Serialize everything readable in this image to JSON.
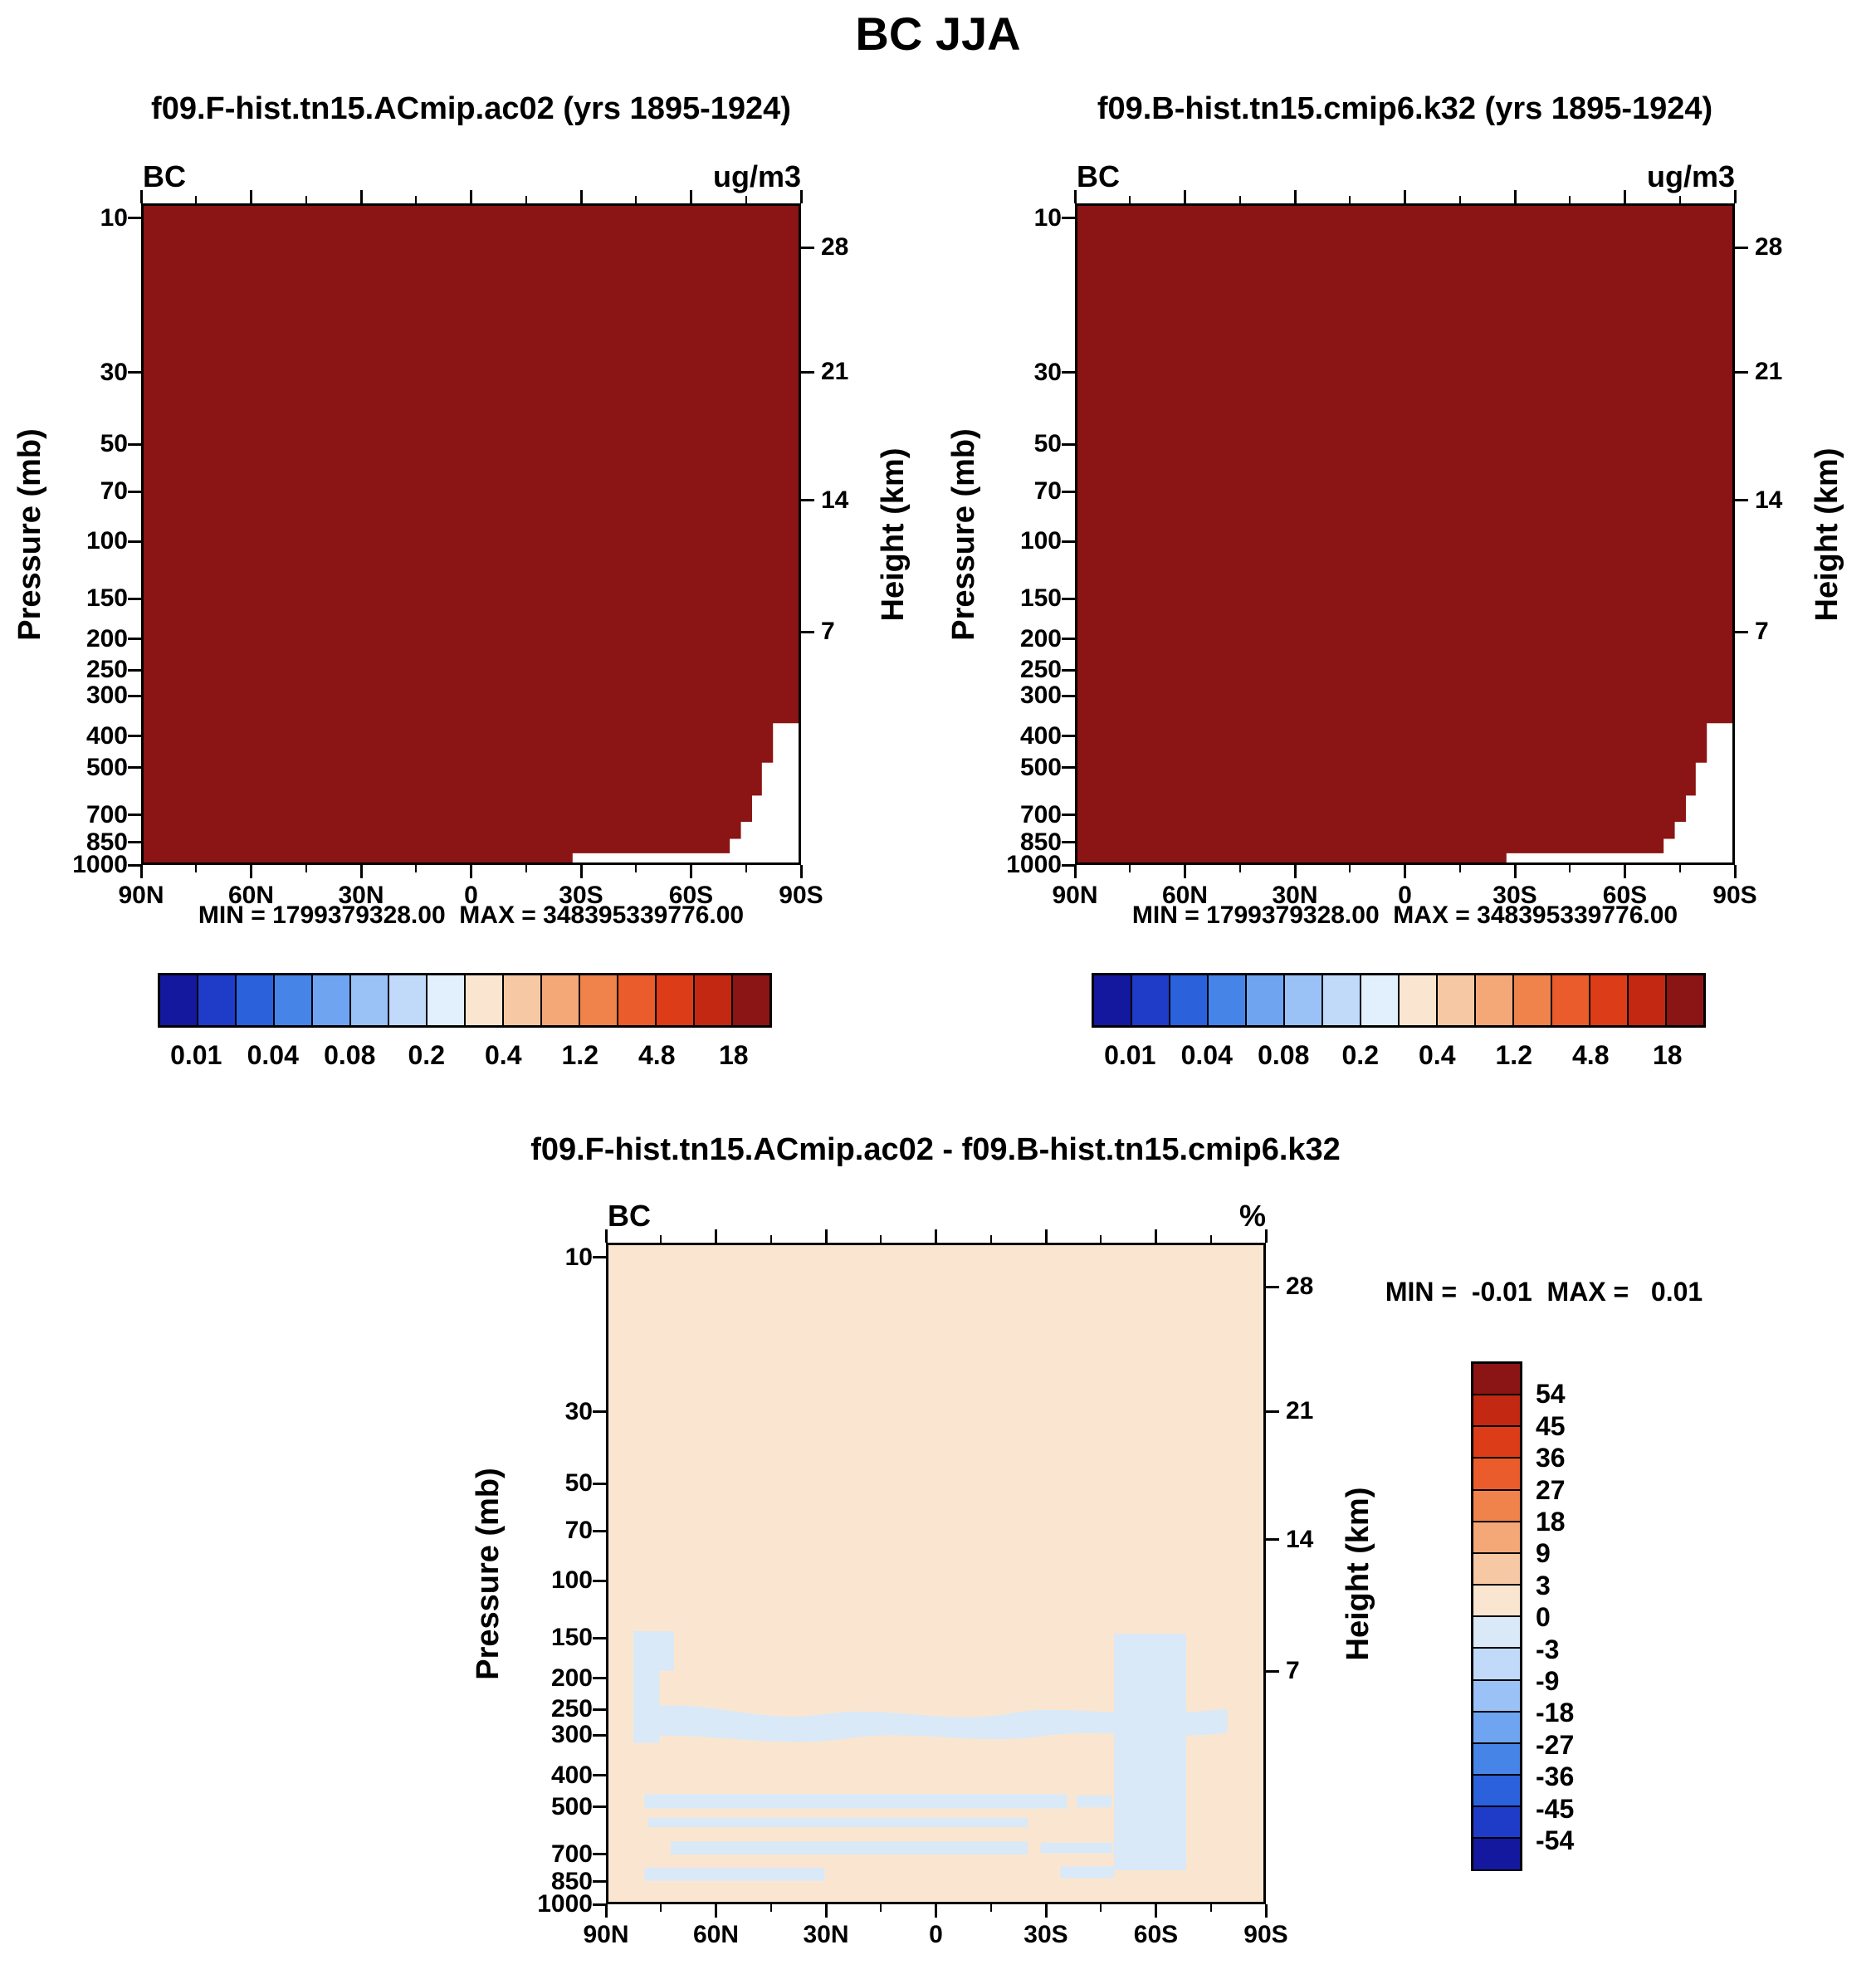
{
  "title": "BC JJA",
  "panels": {
    "top_left": {
      "title": "f09.F-hist.tn15.ACmip.ac02 (yrs 1895-1924)",
      "field_label": "BC",
      "units_label": "ug/m3",
      "stats": "MIN = 1799379328.00  MAX = 348395339776.00"
    },
    "top_right": {
      "title": "f09.B-hist.tn15.cmip6.k32 (yrs 1895-1924)",
      "field_label": "BC",
      "units_label": "ug/m3",
      "stats": "MIN = 1799379328.00  MAX = 348395339776.00"
    },
    "bottom": {
      "title": "f09.F-hist.tn15.ACmip.ac02 - f09.B-hist.tn15.cmip6.k32",
      "field_label": "BC",
      "units_label": "%",
      "stats": "MIN =  -0.01  MAX =   0.01"
    }
  },
  "axes": {
    "pressure_label": "Pressure (mb)",
    "height_label": "Height (km)",
    "pressure_ticks": [
      10,
      30,
      50,
      70,
      100,
      150,
      200,
      250,
      300,
      400,
      500,
      700,
      850,
      1000
    ],
    "height_ticks": [
      28,
      21,
      14,
      7
    ],
    "lat_ticks": [
      "90N",
      "60N",
      "30N",
      "0",
      "30S",
      "60S",
      "90S"
    ]
  },
  "colorbar_top": {
    "labels": [
      "0.01",
      "0.04",
      "0.08",
      "0.2",
      "0.4",
      "1.2",
      "4.8",
      "18"
    ],
    "colors": [
      "#14189E",
      "#1F3CC8",
      "#2B62DC",
      "#4684E8",
      "#6FA4F0",
      "#9AC2F6",
      "#C2DAFA",
      "#E2EFFC",
      "#FAE6D0",
      "#F7C8A4",
      "#F4A878",
      "#F0824C",
      "#EA5C2C",
      "#DC3C18",
      "#C22812",
      "#8B1414"
    ]
  },
  "colorbar_diff": {
    "labels": [
      "54",
      "45",
      "36",
      "27",
      "18",
      "9",
      "3",
      "0",
      "-3",
      "-9",
      "-18",
      "-27",
      "-36",
      "-45",
      "-54"
    ],
    "colors": [
      "#8B1414",
      "#C22812",
      "#DC3C18",
      "#EA5C2C",
      "#F0824C",
      "#F4A878",
      "#F7C8A4",
      "#FAE6D0",
      "#D9E9F8",
      "#C2DAFA",
      "#9AC2F6",
      "#6FA4F0",
      "#4684E8",
      "#2B62DC",
      "#1F3CC8",
      "#14189E"
    ]
  },
  "colors": {
    "saturated_field": "#8B1414",
    "missing_white": "#FFFFFF",
    "diff_background": "#FAE6D0",
    "diff_negative_band": "#D9E9F8"
  },
  "chart_data": [
    {
      "type": "heatmap",
      "title": "f09.F-hist.tn15.ACmip.ac02 (yrs 1895-1924)",
      "variable": "BC",
      "units": "ug/m3",
      "season": "JJA",
      "x_ticks": [
        "90N",
        "60N",
        "30N",
        "0",
        "30S",
        "60S",
        "90S"
      ],
      "y_axis": {
        "label": "Pressure (mb)",
        "scale": "log",
        "ticks": [
          10,
          30,
          50,
          70,
          100,
          150,
          200,
          250,
          300,
          400,
          500,
          700,
          850,
          1000
        ]
      },
      "secondary_y_axis": {
        "label": "Height (km)",
        "ticks": [
          28,
          21,
          14,
          7
        ]
      },
      "colorbar_labels": [
        0.01,
        0.04,
        0.08,
        0.2,
        0.4,
        1.2,
        4.8,
        18
      ],
      "min": 1799379328.0,
      "max": 348395339776.0,
      "field_description": "Entire latitude-pressure cross-section is saturated in the highest color bin (dark red, > 18 ug/m3); a small white stepped below-range/missing region sits at the bottom-right near the surface from ~30S-90S below ~700 mb."
    },
    {
      "type": "heatmap",
      "title": "f09.B-hist.tn15.cmip6.k32 (yrs 1895-1924)",
      "variable": "BC",
      "units": "ug/m3",
      "season": "JJA",
      "x_ticks": [
        "90N",
        "60N",
        "30N",
        "0",
        "30S",
        "60S",
        "90S"
      ],
      "y_axis": {
        "label": "Pressure (mb)",
        "scale": "log",
        "ticks": [
          10,
          30,
          50,
          70,
          100,
          150,
          200,
          250,
          300,
          400,
          500,
          700,
          850,
          1000
        ]
      },
      "secondary_y_axis": {
        "label": "Height (km)",
        "ticks": [
          28,
          21,
          14,
          7
        ]
      },
      "colorbar_labels": [
        0.01,
        0.04,
        0.08,
        0.2,
        0.4,
        1.2,
        4.8,
        18
      ],
      "min": 1799379328.0,
      "max": 348395339776.0,
      "field_description": "Identical appearance to left panel: fully saturated dark red (> 18 ug/m3) with small white stepped region at bottom right near 90S below ~700 mb."
    },
    {
      "type": "heatmap",
      "title": "f09.F-hist.tn15.ACmip.ac02 - f09.B-hist.tn15.cmip6.k32",
      "variable": "BC",
      "units": "%",
      "x_ticks": [
        "90N",
        "60N",
        "30N",
        "0",
        "30S",
        "60S",
        "90S"
      ],
      "y_axis": {
        "label": "Pressure (mb)",
        "scale": "log",
        "ticks": [
          10,
          30,
          50,
          70,
          100,
          150,
          200,
          250,
          300,
          400,
          500,
          700,
          850,
          1000
        ]
      },
      "secondary_y_axis": {
        "label": "Height (km)",
        "ticks": [
          28,
          21,
          14,
          7
        ]
      },
      "colorbar_labels": [
        54,
        45,
        36,
        27,
        18,
        9,
        3,
        0,
        -3,
        -9,
        -18,
        -27,
        -36,
        -45,
        -54
      ],
      "min": -0.01,
      "max": 0.01,
      "field_description": "Difference is essentially zero everywhere: background in the 0 to 3% bin (pale cream) with scattered -3 to 0% (pale blue) wavy bands below ~150 mb: near 75-85N, a band around 250-300 mb spanning most latitudes, thin strips near 500, 700 and 850 mb, and a broad block around 50-70S from 150 mb to near the surface."
    }
  ]
}
